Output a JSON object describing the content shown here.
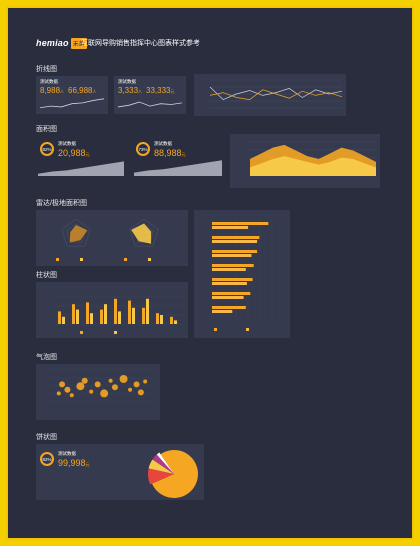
{
  "header": {
    "brand": "hemiao",
    "brand_tag": "禾苗",
    "title": "互联网导购销售指挥中心图表样式参考"
  },
  "sections": {
    "line": "折线图",
    "area": "面积图",
    "radar": "雷达/极地面积图",
    "bar": "柱状图",
    "bubble": "气泡图",
    "pie": "饼状图"
  },
  "line_section": {
    "card1": {
      "label": "测试数据",
      "v1": "8,988",
      "u1": "人",
      "v2": "66,988",
      "u2": "人"
    },
    "card2": {
      "label": "测试数据",
      "v1": "3,333",
      "u1": "人",
      "v2": "33,333",
      "u2": "元"
    }
  },
  "area_section": {
    "card1": {
      "badge": "82%",
      "label": "测试数据",
      "value": "20,988",
      "unit": "元"
    },
    "card2": {
      "badge": "73%",
      "label": "测试数据",
      "value": "88,988",
      "unit": "元"
    }
  },
  "pie_section": {
    "card": {
      "badge": "82%",
      "label": "测试数据",
      "value": "99,998",
      "unit": "元"
    }
  },
  "colors": {
    "accent": "#f5a623",
    "accent2": "#f7c948",
    "bg": "#2a2d3e",
    "panel": "#363a4e",
    "frame": "#f5c400"
  },
  "chart_data": [
    {
      "type": "line",
      "series": [
        {
          "values": [
            8,
            12,
            10,
            18,
            20,
            26,
            30
          ]
        }
      ]
    },
    {
      "type": "line",
      "series": [
        {
          "values": [
            10,
            14,
            22,
            12,
            18,
            16,
            20
          ]
        }
      ]
    },
    {
      "type": "line",
      "ylim": [
        0,
        40
      ],
      "series": [
        {
          "values": [
            30,
            12,
            20,
            25,
            18,
            22,
            28,
            15,
            26,
            20,
            24
          ]
        },
        {
          "values": [
            18,
            22,
            15,
            12,
            26,
            20,
            14,
            24,
            18,
            22,
            16
          ]
        }
      ]
    },
    {
      "type": "area",
      "values": [
        2,
        4,
        5,
        7,
        9,
        11,
        13
      ]
    },
    {
      "type": "area",
      "values": [
        3,
        5,
        6,
        8,
        10,
        12,
        14
      ]
    },
    {
      "type": "area",
      "series": [
        {
          "values": [
            12,
            16,
            20,
            22,
            18,
            14,
            12,
            16,
            20,
            18,
            14,
            10
          ]
        },
        {
          "values": [
            6,
            9,
            12,
            14,
            12,
            10,
            8,
            10,
            13,
            12,
            9,
            6
          ]
        }
      ]
    },
    {
      "type": "radar",
      "values": [
        0.6,
        0.8,
        0.5,
        0.7,
        0.4
      ]
    },
    {
      "type": "radar",
      "values": [
        0.7,
        0.5,
        0.8,
        0.6,
        0.9
      ]
    },
    {
      "type": "bar",
      "orientation": "horizontal",
      "series": [
        {
          "values": [
            500,
            420,
            400,
            370,
            360,
            340,
            300
          ]
        },
        {
          "values": [
            320,
            400,
            350,
            300,
            310,
            280,
            180
          ]
        }
      ]
    },
    {
      "type": "bar",
      "ylim": [
        0,
        100
      ],
      "series": [
        {
          "values": [
            35,
            55,
            60,
            40,
            70,
            65,
            45,
            30,
            20
          ]
        },
        {
          "values": [
            20,
            40,
            30,
            55,
            35,
            45,
            70,
            25,
            10
          ]
        }
      ]
    },
    {
      "type": "scatter",
      "points": [
        [
          0.1,
          0.35,
          2
        ],
        [
          0.13,
          0.6,
          3
        ],
        [
          0.18,
          0.45,
          3
        ],
        [
          0.22,
          0.3,
          2
        ],
        [
          0.3,
          0.55,
          4
        ],
        [
          0.34,
          0.7,
          3
        ],
        [
          0.4,
          0.4,
          2
        ],
        [
          0.46,
          0.6,
          3
        ],
        [
          0.52,
          0.35,
          4
        ],
        [
          0.58,
          0.7,
          2
        ],
        [
          0.62,
          0.52,
          3
        ],
        [
          0.7,
          0.75,
          4
        ],
        [
          0.76,
          0.45,
          2
        ],
        [
          0.82,
          0.6,
          3
        ],
        [
          0.86,
          0.38,
          3
        ],
        [
          0.9,
          0.68,
          2
        ]
      ]
    },
    {
      "type": "pie",
      "values": [
        78,
        10,
        6,
        4,
        2
      ]
    }
  ]
}
